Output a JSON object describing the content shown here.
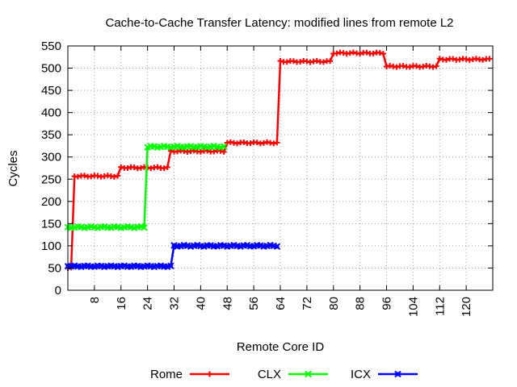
{
  "chart_data": {
    "type": "line",
    "title": "Cache-to-Cache Transfer Latency: modified lines from remote L2",
    "xlabel": "Remote Core ID",
    "ylabel": "Cycles",
    "xlim": [
      0,
      128
    ],
    "ylim": [
      0,
      550
    ],
    "xticks": [
      8,
      16,
      24,
      32,
      40,
      48,
      56,
      64,
      72,
      80,
      88,
      96,
      104,
      112,
      120
    ],
    "yticks": [
      0,
      50,
      100,
      150,
      200,
      250,
      300,
      350,
      400,
      450,
      500,
      550
    ],
    "grid": true,
    "legend_position": "bottom-center",
    "series": [
      {
        "name": "Rome",
        "color": "#ff0000",
        "marker": "plus",
        "segments": [
          {
            "x_start": 0,
            "x_end": 1,
            "value": 50
          },
          {
            "x_start": 2,
            "x_end": 15,
            "value": 257
          },
          {
            "x_start": 16,
            "x_end": 30,
            "value": 276
          },
          {
            "x_start": 31,
            "x_end": 47,
            "value": 313
          },
          {
            "x_start": 48,
            "x_end": 63,
            "value": 332
          },
          {
            "x_start": 64,
            "x_end": 79,
            "value": 515
          },
          {
            "x_start": 80,
            "x_end": 95,
            "value": 534
          },
          {
            "x_start": 96,
            "x_end": 111,
            "value": 504
          },
          {
            "x_start": 112,
            "x_end": 127,
            "value": 520
          }
        ]
      },
      {
        "name": "CLX",
        "color": "#00ff00",
        "marker": "cross",
        "segments": [
          {
            "x_start": 0,
            "x_end": 23,
            "value": 142
          },
          {
            "x_start": 24,
            "x_end": 47,
            "value": 323
          }
        ]
      },
      {
        "name": "ICX",
        "color": "#0000ff",
        "marker": "box",
        "segments": [
          {
            "x_start": 0,
            "x_end": 31,
            "value": 54
          },
          {
            "x_start": 32,
            "x_end": 63,
            "value": 100
          }
        ]
      }
    ]
  }
}
